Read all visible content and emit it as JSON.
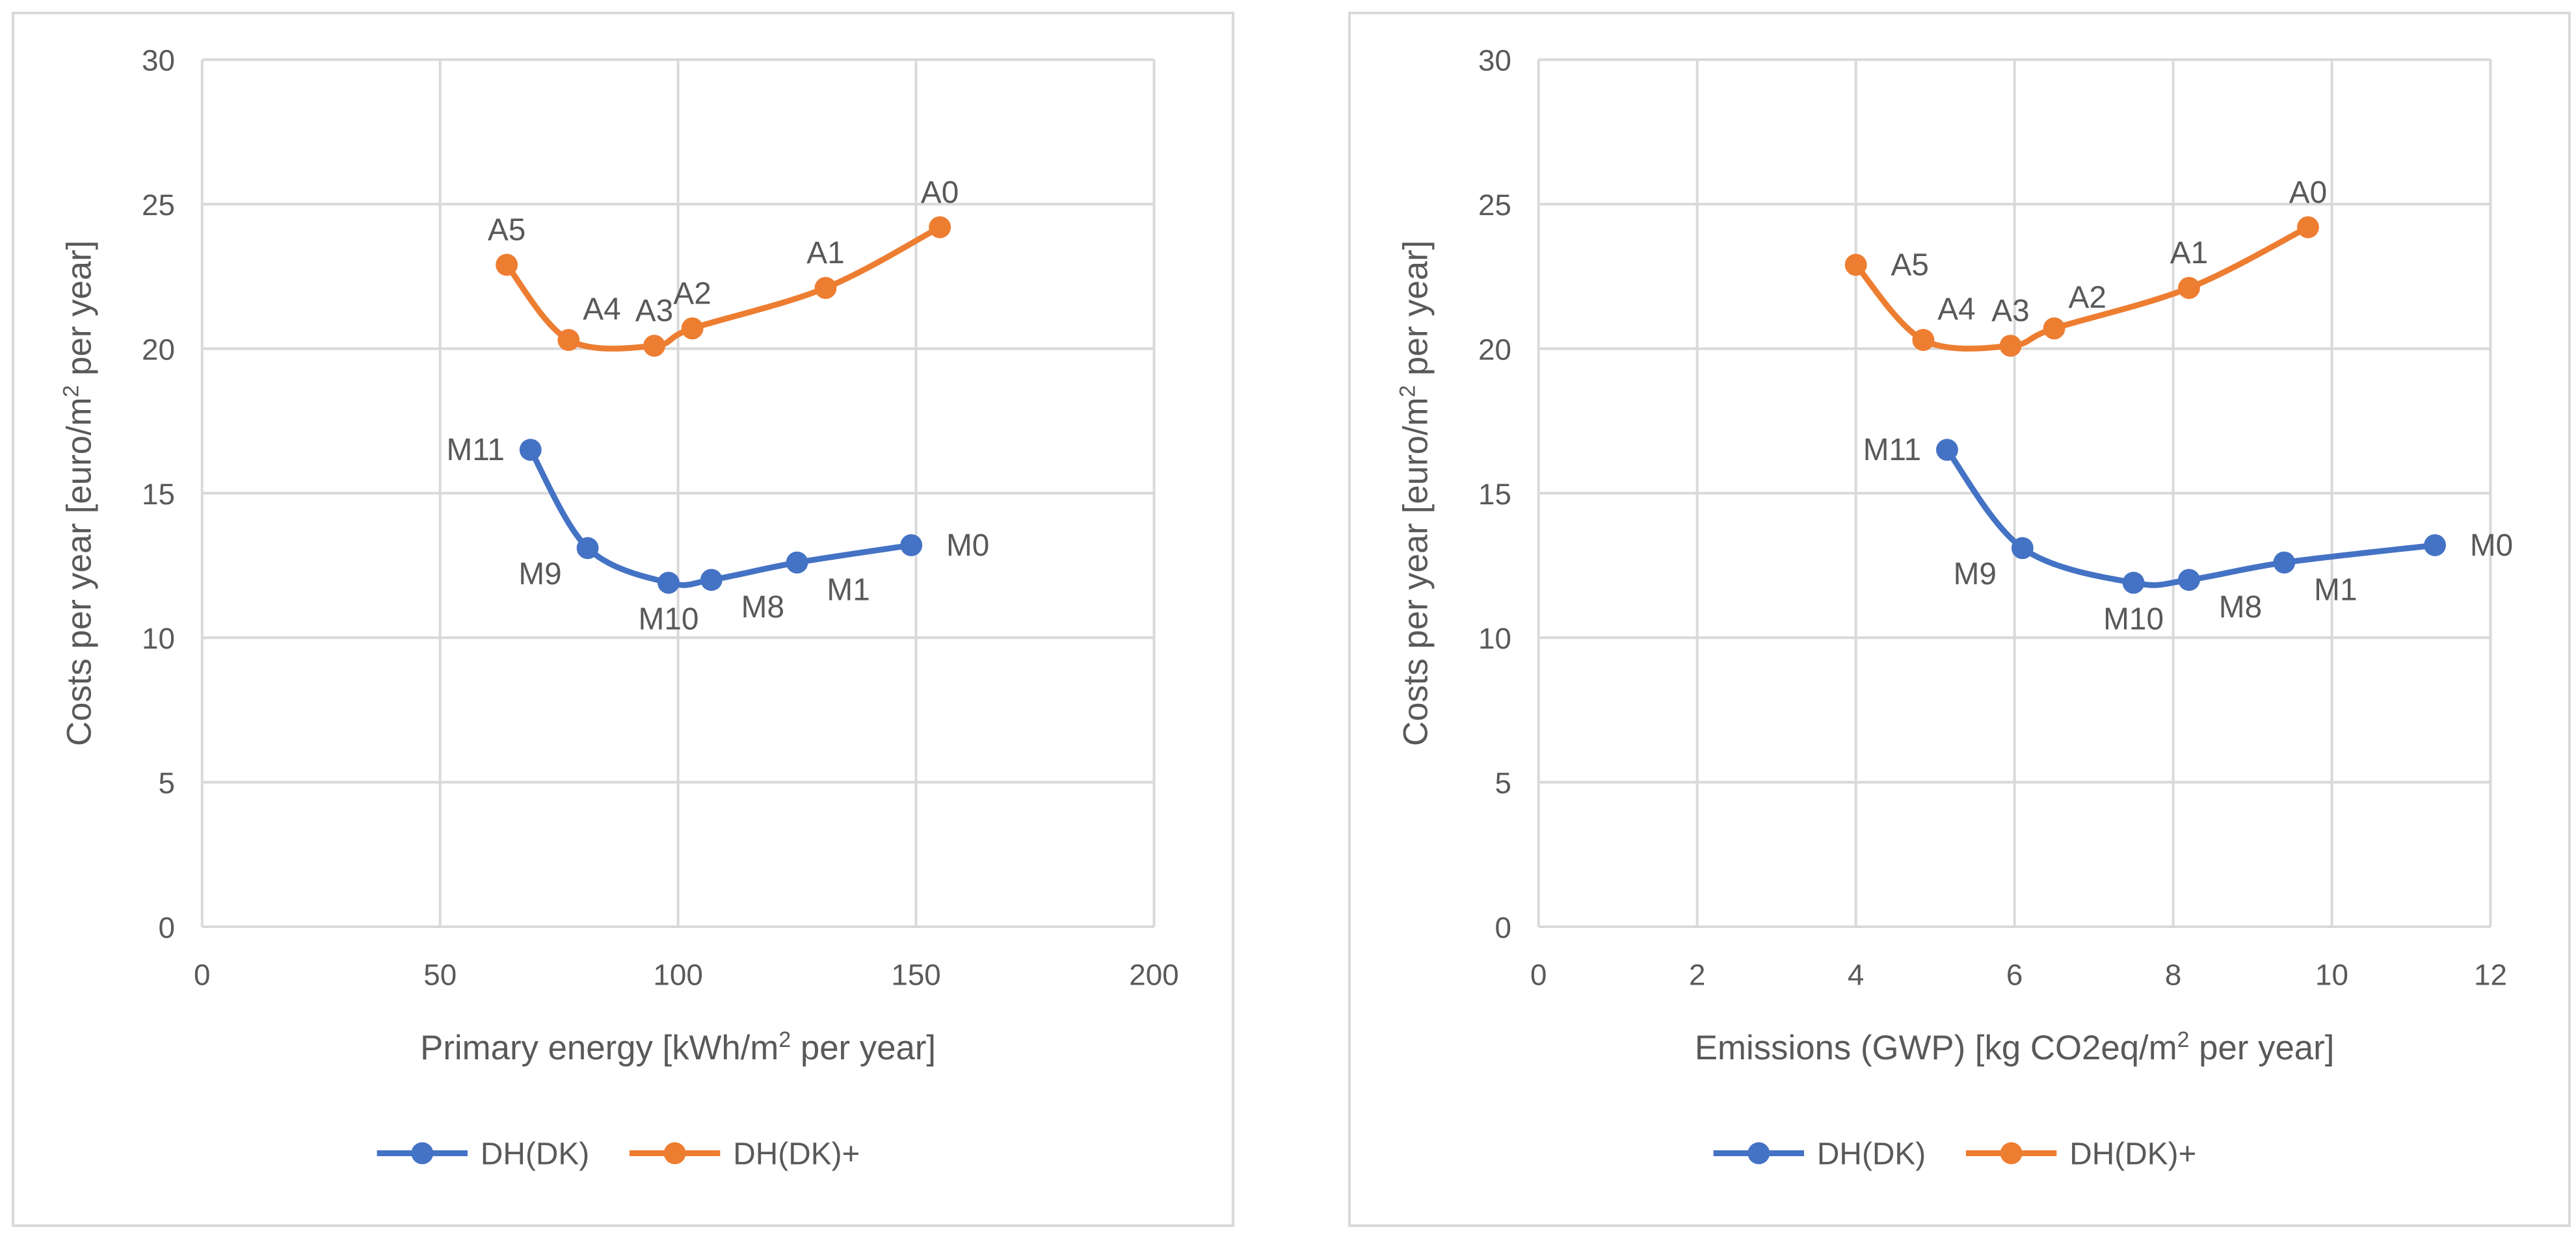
{
  "chart_data": [
    {
      "type": "line",
      "xlabel_parts": [
        "Primary energy [kWh/m",
        "2",
        " per year]"
      ],
      "ylabel_parts": [
        "Costs per year [euro/m",
        "2",
        " per year]"
      ],
      "xlim": [
        0,
        200
      ],
      "ylim": [
        0,
        30
      ],
      "xticks": [
        0,
        50,
        100,
        150,
        200
      ],
      "yticks": [
        0,
        5,
        10,
        15,
        20,
        25,
        30
      ],
      "grid": true,
      "legend": "bottom",
      "series": [
        {
          "name": "DH(DK)",
          "color": "#4472c4",
          "points": [
            {
              "label": "M11",
              "x": 69,
              "y": 16.5,
              "pos": "left"
            },
            {
              "label": "M9",
              "x": 81,
              "y": 13.1,
              "pos": "below-left"
            },
            {
              "label": "M10",
              "x": 98,
              "y": 11.9,
              "pos": "below"
            },
            {
              "label": "M8",
              "x": 107,
              "y": 12.0,
              "pos": "below-right"
            },
            {
              "label": "M1",
              "x": 125,
              "y": 12.6,
              "pos": "below-right"
            },
            {
              "label": "M0",
              "x": 149,
              "y": 13.2,
              "pos": "right"
            }
          ]
        },
        {
          "name": "DH(DK)+",
          "color": "#ed7d31",
          "points": [
            {
              "label": "A5",
              "x": 64,
              "y": 22.9,
              "pos": "above"
            },
            {
              "label": "A4",
              "x": 77,
              "y": 20.3,
              "pos": "above-right"
            },
            {
              "label": "A3",
              "x": 95,
              "y": 20.1,
              "pos": "above"
            },
            {
              "label": "A2",
              "x": 103,
              "y": 20.7,
              "pos": "above"
            },
            {
              "label": "A1",
              "x": 131,
              "y": 22.1,
              "pos": "above"
            },
            {
              "label": "A0",
              "x": 155,
              "y": 24.2,
              "pos": "above"
            }
          ]
        }
      ]
    },
    {
      "type": "line",
      "xlabel_parts": [
        "Emissions (GWP) [kg CO2eq/m",
        "2",
        " per year]"
      ],
      "ylabel_parts": [
        "Costs per year [euro/m",
        "2",
        " per year]"
      ],
      "xlim": [
        0,
        12
      ],
      "ylim": [
        0,
        30
      ],
      "xticks": [
        0,
        2,
        4,
        6,
        8,
        10,
        12
      ],
      "yticks": [
        0,
        5,
        10,
        15,
        20,
        25,
        30
      ],
      "grid": true,
      "legend": "bottom",
      "series": [
        {
          "name": "DH(DK)",
          "color": "#4472c4",
          "points": [
            {
              "label": "M11",
              "x": 5.15,
              "y": 16.5,
              "pos": "left"
            },
            {
              "label": "M9",
              "x": 6.1,
              "y": 13.1,
              "pos": "below-left"
            },
            {
              "label": "M10",
              "x": 7.5,
              "y": 11.9,
              "pos": "below"
            },
            {
              "label": "M8",
              "x": 8.2,
              "y": 12.0,
              "pos": "below-right"
            },
            {
              "label": "M1",
              "x": 9.4,
              "y": 12.6,
              "pos": "below-right"
            },
            {
              "label": "M0",
              "x": 11.3,
              "y": 13.2,
              "pos": "right"
            }
          ]
        },
        {
          "name": "DH(DK)+",
          "color": "#ed7d31",
          "points": [
            {
              "label": "A5",
              "x": 4.0,
              "y": 22.9,
              "pos": "right"
            },
            {
              "label": "A4",
              "x": 4.85,
              "y": 20.3,
              "pos": "above-right"
            },
            {
              "label": "A3",
              "x": 5.95,
              "y": 20.1,
              "pos": "above"
            },
            {
              "label": "A2",
              "x": 6.5,
              "y": 20.7,
              "pos": "above-right"
            },
            {
              "label": "A1",
              "x": 8.2,
              "y": 22.1,
              "pos": "above"
            },
            {
              "label": "A0",
              "x": 9.7,
              "y": 24.2,
              "pos": "above"
            }
          ]
        }
      ]
    }
  ]
}
